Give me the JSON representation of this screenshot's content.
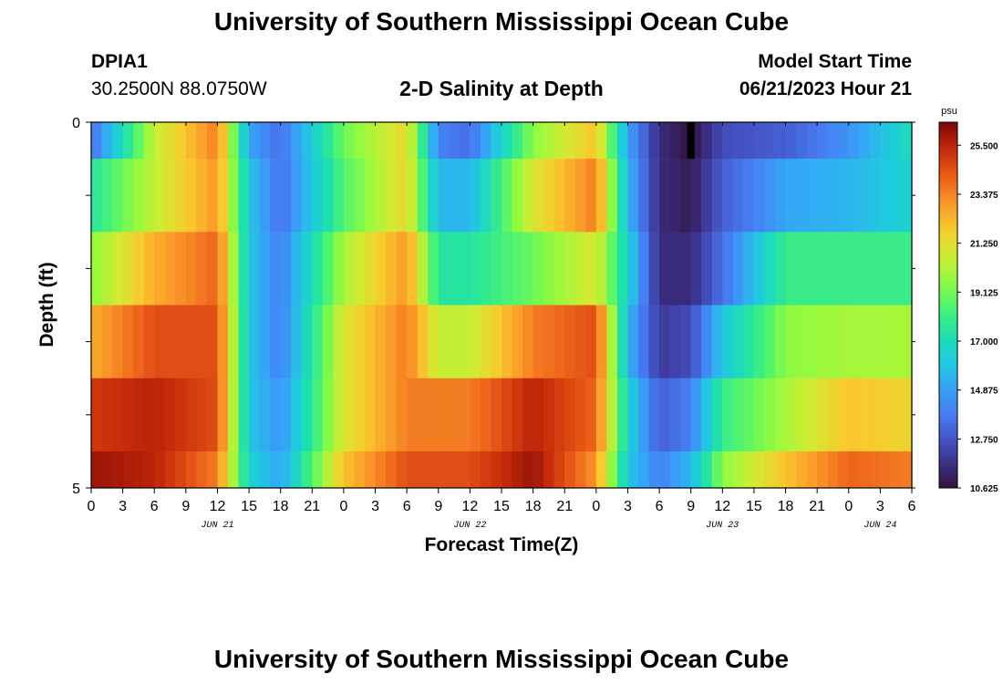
{
  "header": {
    "title": "University of Southern Mississippi Ocean Cube",
    "station_id": "DPIA1",
    "station_coords": "30.2500N  88.0750W",
    "plot_title": "2-D Salinity at Depth",
    "model_label": "Model Start Time",
    "model_time": "06/21/2023 Hour 21"
  },
  "footer": {
    "title": "University of Southern Mississippi Ocean Cube"
  },
  "chart_data": {
    "type": "heatmap",
    "title": "2-D Salinity at Depth",
    "xlabel": "Forecast Time(Z)",
    "ylabel": "Depth (ft)",
    "y_tick_labels": [
      "0",
      "5"
    ],
    "x_tick_labels": [
      "0",
      "3",
      "6",
      "9",
      "12",
      "15",
      "18",
      "21",
      "0",
      "3",
      "6",
      "9",
      "12",
      "15",
      "18",
      "21",
      "0",
      "3",
      "6",
      "9",
      "12",
      "15",
      "18",
      "21",
      "0",
      "3",
      "6"
    ],
    "date_labels": [
      {
        "label": "JUN 21",
        "hour": 12
      },
      {
        "label": "JUN 22",
        "hour": 36
      },
      {
        "label": "JUN 23",
        "hour": 60
      },
      {
        "label": "JUN 24",
        "hour": 75
      }
    ],
    "x_hours_range": [
      0,
      78
    ],
    "depth_range_ft": [
      0,
      5
    ],
    "colorbar": {
      "unit": "psu",
      "min": 10.625,
      "max": 26.5,
      "labels": [
        "25.500",
        "23.375",
        "21.250",
        "19.125",
        "17.000",
        "14.875",
        "12.750",
        "10.625"
      ]
    },
    "salinity_profiles": [
      {
        "depth_band": "0-0.5 ft",
        "hours": [
          0,
          6,
          12,
          15,
          18,
          24,
          30,
          33,
          36,
          42,
          48,
          51,
          54,
          57,
          60,
          66,
          72,
          78
        ],
        "psu": [
          13.5,
          20.5,
          23.5,
          15,
          13.5,
          19,
          21.5,
          14,
          13.5,
          19.5,
          22,
          15,
          11.5,
          10.7,
          12.5,
          13,
          14.5,
          17
        ]
      },
      {
        "depth_band": "0.5-1.5 ft",
        "hours": [
          0,
          6,
          12,
          15,
          18,
          24,
          30,
          33,
          36,
          42,
          48,
          51,
          54,
          57,
          60,
          66,
          72,
          78
        ],
        "psu": [
          17.5,
          20.5,
          23,
          16,
          13.5,
          18.5,
          21.5,
          15.5,
          15.5,
          21,
          23.5,
          15.5,
          11.5,
          11,
          13,
          15,
          15.5,
          16.5
        ]
      },
      {
        "depth_band": "1.5-2.5 ft",
        "hours": [
          0,
          6,
          12,
          15,
          18,
          24,
          30,
          33,
          36,
          42,
          48,
          51,
          54,
          57,
          60,
          66,
          72,
          78
        ],
        "psu": [
          19.5,
          22.5,
          24,
          16,
          14,
          20,
          23,
          17.5,
          17.5,
          19,
          21,
          16.5,
          11.5,
          11.5,
          13.5,
          18,
          18,
          18
        ]
      },
      {
        "depth_band": "2.5-3.5 ft",
        "hours": [
          0,
          6,
          12,
          15,
          18,
          24,
          30,
          33,
          36,
          42,
          48,
          51,
          54,
          57,
          60,
          66,
          72,
          78
        ],
        "psu": [
          22.5,
          24.5,
          24.5,
          16,
          14,
          21,
          23.5,
          20.5,
          20.5,
          23.5,
          24.5,
          15.5,
          12,
          12.5,
          16,
          19.5,
          20,
          20
        ]
      },
      {
        "depth_band": "3.5-4.5 ft",
        "hours": [
          0,
          6,
          12,
          15,
          18,
          24,
          30,
          33,
          36,
          42,
          48,
          51,
          54,
          57,
          60,
          66,
          72,
          78
        ],
        "psu": [
          25,
          25.5,
          24.5,
          16,
          14.5,
          21,
          23.5,
          23.5,
          23.5,
          25.5,
          24,
          16.5,
          13,
          14,
          18,
          20,
          22,
          21.5
        ]
      },
      {
        "depth_band": "4.5-5 ft",
        "hours": [
          0,
          6,
          12,
          15,
          18,
          24,
          30,
          33,
          36,
          42,
          48,
          51,
          54,
          57,
          60,
          66,
          72,
          78
        ],
        "psu": [
          26,
          25.5,
          23.5,
          16.5,
          15,
          22,
          24.5,
          24.5,
          24.5,
          26,
          23,
          16,
          14,
          15.5,
          19.5,
          22,
          24,
          23.5
        ]
      }
    ],
    "missing_data": {
      "hour": 57,
      "depth_band": "0-0.5 ft"
    }
  }
}
